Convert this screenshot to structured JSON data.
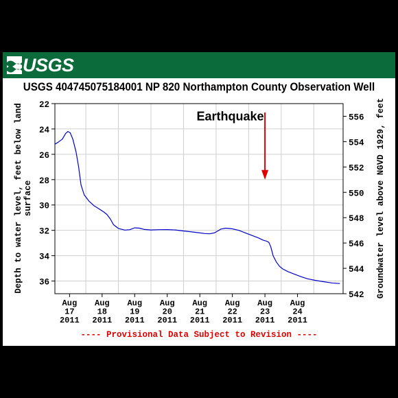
{
  "banner": {
    "logo_text": "USGS",
    "color": "#0b6b3a"
  },
  "chart_data": {
    "type": "line",
    "title": "USGS 404745075184001 NP   820  Northampton County Observation Well",
    "ylabel_left": "Depth to water level, feet below land surface",
    "ylabel_right": "Groundwater level above NGVD 1929, feet",
    "y_left_range": [
      22,
      37
    ],
    "y_left_inverted": true,
    "y_left_ticks": [
      22,
      24,
      26,
      28,
      30,
      32,
      34,
      36
    ],
    "y_right_range": [
      557,
      542
    ],
    "y_right_ticks": [
      556,
      554,
      552,
      550,
      548,
      546,
      544,
      542
    ],
    "x_range": [
      16.55,
      25.4
    ],
    "x_ticks": [
      {
        "x": 17,
        "label": [
          "Aug",
          "17",
          "2011"
        ]
      },
      {
        "x": 18,
        "label": [
          "Aug",
          "18",
          "2011"
        ]
      },
      {
        "x": 19,
        "label": [
          "Aug",
          "19",
          "2011"
        ]
      },
      {
        "x": 20,
        "label": [
          "Aug",
          "20",
          "2011"
        ]
      },
      {
        "x": 21,
        "label": [
          "Aug",
          "21",
          "2011"
        ]
      },
      {
        "x": 22,
        "label": [
          "Aug",
          "22",
          "2011"
        ]
      },
      {
        "x": 23,
        "label": [
          "Aug",
          "23",
          "2011"
        ]
      },
      {
        "x": 24,
        "label": [
          "Aug",
          "24",
          "2011"
        ]
      }
    ],
    "grid": true,
    "series": [
      {
        "color": "#0000cc",
        "points": [
          [
            16.55,
            25.2
          ],
          [
            16.65,
            25.05
          ],
          [
            16.78,
            24.8
          ],
          [
            16.88,
            24.35
          ],
          [
            16.95,
            24.2
          ],
          [
            17.02,
            24.3
          ],
          [
            17.1,
            24.8
          ],
          [
            17.2,
            25.8
          ],
          [
            17.28,
            27.0
          ],
          [
            17.35,
            28.4
          ],
          [
            17.45,
            29.2
          ],
          [
            17.6,
            29.7
          ],
          [
            17.75,
            30.05
          ],
          [
            17.9,
            30.3
          ],
          [
            18.05,
            30.55
          ],
          [
            18.15,
            30.75
          ],
          [
            18.25,
            31.1
          ],
          [
            18.35,
            31.55
          ],
          [
            18.5,
            31.85
          ],
          [
            18.7,
            31.98
          ],
          [
            18.85,
            31.95
          ],
          [
            19.0,
            31.8
          ],
          [
            19.15,
            31.83
          ],
          [
            19.3,
            31.93
          ],
          [
            19.5,
            31.97
          ],
          [
            19.75,
            31.95
          ],
          [
            20.0,
            31.94
          ],
          [
            20.25,
            31.97
          ],
          [
            20.5,
            32.05
          ],
          [
            20.75,
            32.12
          ],
          [
            21.0,
            32.2
          ],
          [
            21.15,
            32.25
          ],
          [
            21.3,
            32.27
          ],
          [
            21.45,
            32.2
          ],
          [
            21.55,
            32.05
          ],
          [
            21.65,
            31.9
          ],
          [
            21.8,
            31.83
          ],
          [
            22.0,
            31.88
          ],
          [
            22.2,
            32.0
          ],
          [
            22.4,
            32.2
          ],
          [
            22.6,
            32.4
          ],
          [
            22.8,
            32.6
          ],
          [
            22.95,
            32.78
          ],
          [
            23.05,
            32.85
          ],
          [
            23.12,
            32.95
          ],
          [
            23.18,
            33.3
          ],
          [
            23.25,
            34.0
          ],
          [
            23.35,
            34.5
          ],
          [
            23.45,
            34.85
          ],
          [
            23.55,
            35.05
          ],
          [
            23.7,
            35.25
          ],
          [
            23.9,
            35.45
          ],
          [
            24.1,
            35.65
          ],
          [
            24.3,
            35.82
          ],
          [
            24.55,
            35.95
          ],
          [
            24.8,
            36.05
          ],
          [
            25.05,
            36.15
          ],
          [
            25.3,
            36.2
          ]
        ]
      }
    ],
    "annotations": [
      {
        "text": "Earthquake",
        "x": 20.9,
        "y": 23.0
      },
      {
        "type": "arrow",
        "color": "#dd0000",
        "x": 23.0,
        "y_from": 22.7,
        "y_to": 28.0
      }
    ],
    "footer": "---- Provisional Data Subject to Revision ----",
    "footer_color": "#dd0000"
  }
}
